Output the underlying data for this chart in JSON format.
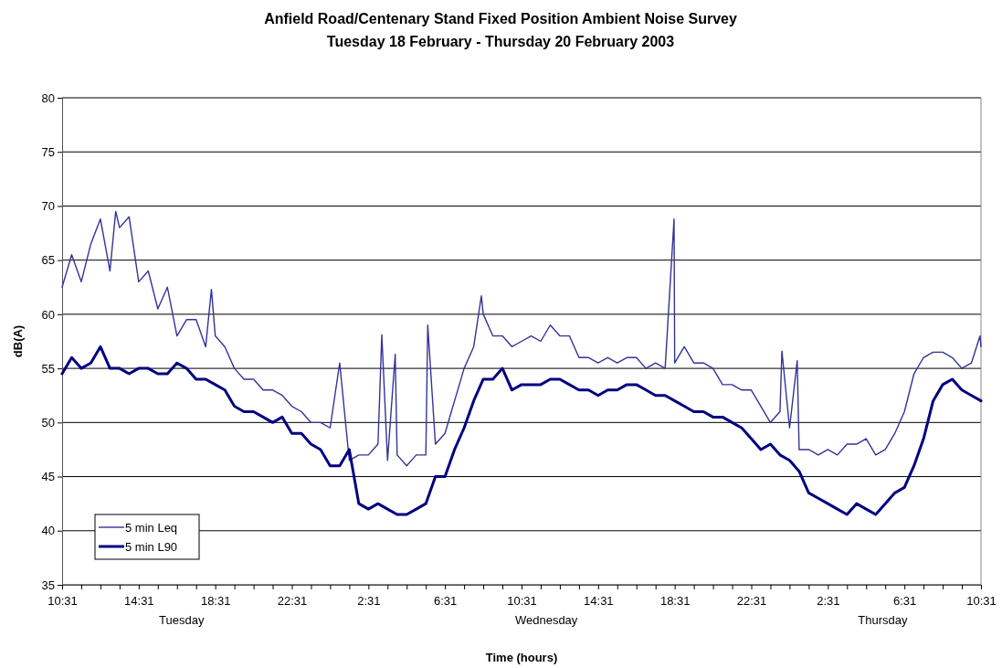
{
  "chart_data": {
    "type": "line",
    "title": "Anfield Road/Centenary Stand Fixed Position Ambient Noise Survey",
    "subtitle": "Tuesday 18 February - Thursday 20 February 2003",
    "xlabel": "Time (hours)",
    "ylabel": "dB(A)",
    "annotations": [
      "Tuesday",
      "Wednesday",
      "Thursday"
    ],
    "xlim": [
      "2003-02-18T10:31",
      "2003-02-20T10:31"
    ],
    "ylim": [
      35,
      80
    ],
    "yticks": [
      35,
      40,
      45,
      50,
      55,
      60,
      65,
      70,
      75,
      80
    ],
    "xticks": [
      {
        "value": "2003-02-18T10:31",
        "label": "10:31"
      },
      {
        "value": "2003-02-18T11:31",
        "label": null
      },
      {
        "value": "2003-02-18T12:31",
        "label": null
      },
      {
        "value": "2003-02-18T13:31",
        "label": null
      },
      {
        "value": "2003-02-18T14:31",
        "label": "14:31"
      },
      {
        "value": "2003-02-18T15:31",
        "label": null
      },
      {
        "value": "2003-02-18T16:31",
        "label": null
      },
      {
        "value": "2003-02-18T17:31",
        "label": null
      },
      {
        "value": "2003-02-18T18:31",
        "label": "18:31"
      },
      {
        "value": "2003-02-18T19:31",
        "label": null
      },
      {
        "value": "2003-02-18T20:31",
        "label": null
      },
      {
        "value": "2003-02-18T21:31",
        "label": null
      },
      {
        "value": "2003-02-18T22:31",
        "label": "22:31"
      },
      {
        "value": "2003-02-18T23:31",
        "label": null
      },
      {
        "value": "2003-02-19T00:31",
        "label": null
      },
      {
        "value": "2003-02-19T01:31",
        "label": null
      },
      {
        "value": "2003-02-19T02:31",
        "label": "2:31"
      },
      {
        "value": "2003-02-19T03:31",
        "label": null
      },
      {
        "value": "2003-02-19T04:31",
        "label": null
      },
      {
        "value": "2003-02-19T05:31",
        "label": null
      },
      {
        "value": "2003-02-19T06:31",
        "label": "6:31"
      },
      {
        "value": "2003-02-19T07:31",
        "label": null
      },
      {
        "value": "2003-02-19T08:31",
        "label": null
      },
      {
        "value": "2003-02-19T09:31",
        "label": null
      },
      {
        "value": "2003-02-19T10:31",
        "label": "10:31"
      },
      {
        "value": "2003-02-19T11:31",
        "label": null
      },
      {
        "value": "2003-02-19T12:31",
        "label": null
      },
      {
        "value": "2003-02-19T13:31",
        "label": null
      },
      {
        "value": "2003-02-19T14:31",
        "label": "14:31"
      },
      {
        "value": "2003-02-19T15:31",
        "label": null
      },
      {
        "value": "2003-02-19T16:31",
        "label": null
      },
      {
        "value": "2003-02-19T17:31",
        "label": null
      },
      {
        "value": "2003-02-19T18:31",
        "label": "18:31"
      },
      {
        "value": "2003-02-19T19:31",
        "label": null
      },
      {
        "value": "2003-02-19T20:31",
        "label": null
      },
      {
        "value": "2003-02-19T21:31",
        "label": null
      },
      {
        "value": "2003-02-19T22:31",
        "label": "22:31"
      },
      {
        "value": "2003-02-19T23:31",
        "label": null
      },
      {
        "value": "2003-02-20T00:31",
        "label": null
      },
      {
        "value": "2003-02-20T01:31",
        "label": null
      },
      {
        "value": "2003-02-20T02:31",
        "label": "2:31"
      },
      {
        "value": "2003-02-20T03:31",
        "label": null
      },
      {
        "value": "2003-02-20T04:31",
        "label": null
      },
      {
        "value": "2003-02-20T05:31",
        "label": null
      },
      {
        "value": "2003-02-20T06:31",
        "label": "6:31"
      },
      {
        "value": "2003-02-20T07:31",
        "label": null
      },
      {
        "value": "2003-02-20T08:31",
        "label": null
      },
      {
        "value": "2003-02-20T09:31",
        "label": null
      },
      {
        "value": "2003-02-20T10:31",
        "label": "10:31"
      }
    ],
    "grid": "y",
    "legend": "bottom left",
    "marker": "none",
    "line_style": "solid",
    "x": [
      "2003-02-18T10:31",
      "2003-02-18T11:01",
      "2003-02-18T11:31",
      "2003-02-18T12:01",
      "2003-02-18T12:31",
      "2003-02-18T13:01",
      "2003-02-18T13:31",
      "2003-02-18T14:01",
      "2003-02-18T14:31",
      "2003-02-18T15:01",
      "2003-02-18T15:31",
      "2003-02-18T16:01",
      "2003-02-18T16:31",
      "2003-02-18T17:01",
      "2003-02-18T17:31",
      "2003-02-18T18:01",
      "2003-02-18T18:31",
      "2003-02-18T19:01",
      "2003-02-18T19:31",
      "2003-02-18T20:01",
      "2003-02-18T20:31",
      "2003-02-18T21:01",
      "2003-02-18T21:31",
      "2003-02-18T22:01",
      "2003-02-18T22:31",
      "2003-02-18T23:01",
      "2003-02-18T23:31",
      "2003-02-19T00:01",
      "2003-02-19T00:31",
      "2003-02-19T01:01",
      "2003-02-19T01:31",
      "2003-02-19T02:01",
      "2003-02-19T02:31",
      "2003-02-19T03:01",
      "2003-02-19T03:31",
      "2003-02-19T04:01",
      "2003-02-19T04:31",
      "2003-02-19T05:01",
      "2003-02-19T05:31",
      "2003-02-19T06:01",
      "2003-02-19T06:31",
      "2003-02-19T07:01",
      "2003-02-19T07:31",
      "2003-02-19T08:01",
      "2003-02-19T08:31",
      "2003-02-19T09:01",
      "2003-02-19T09:31",
      "2003-02-19T10:01",
      "2003-02-19T10:31",
      "2003-02-19T11:01",
      "2003-02-19T11:31",
      "2003-02-19T12:01",
      "2003-02-19T12:31",
      "2003-02-19T13:01",
      "2003-02-19T13:31",
      "2003-02-19T14:01",
      "2003-02-19T14:31",
      "2003-02-19T15:01",
      "2003-02-19T15:31",
      "2003-02-19T16:01",
      "2003-02-19T16:31",
      "2003-02-19T17:01",
      "2003-02-19T17:31",
      "2003-02-19T18:01",
      "2003-02-19T18:31",
      "2003-02-19T19:01",
      "2003-02-19T19:31",
      "2003-02-19T20:01",
      "2003-02-19T20:31",
      "2003-02-19T21:01",
      "2003-02-19T21:31",
      "2003-02-19T22:01",
      "2003-02-19T22:31",
      "2003-02-19T23:01",
      "2003-02-19T23:31",
      "2003-02-20T00:01",
      "2003-02-20T00:31",
      "2003-02-20T01:01",
      "2003-02-20T01:31",
      "2003-02-20T02:01",
      "2003-02-20T02:31",
      "2003-02-20T03:01",
      "2003-02-20T03:31",
      "2003-02-20T04:01",
      "2003-02-20T04:31",
      "2003-02-20T05:01",
      "2003-02-20T05:31",
      "2003-02-20T06:01",
      "2003-02-20T06:31",
      "2003-02-20T07:01",
      "2003-02-20T07:31",
      "2003-02-20T08:01",
      "2003-02-20T08:31",
      "2003-02-20T09:01",
      "2003-02-20T09:31",
      "2003-02-20T10:01",
      "2003-02-20T10:31"
    ],
    "series": [
      {
        "name": "5 min Leq",
        "color": "#333399",
        "x": [
          "2003-02-18T10:31",
          "2003-02-18T11:01",
          "2003-02-18T11:31",
          "2003-02-18T12:01",
          "2003-02-18T12:31",
          "2003-02-18T13:01",
          "2003-02-18T13:19",
          "2003-02-18T13:31",
          "2003-02-18T14:01",
          "2003-02-18T14:31",
          "2003-02-18T15:01",
          "2003-02-18T15:31",
          "2003-02-18T16:01",
          "2003-02-18T16:31",
          "2003-02-18T17:01",
          "2003-02-18T17:31",
          "2003-02-18T18:01",
          "2003-02-18T18:19",
          "2003-02-18T18:31",
          "2003-02-18T19:01",
          "2003-02-18T19:31",
          "2003-02-18T20:01",
          "2003-02-18T20:31",
          "2003-02-18T21:01",
          "2003-02-18T21:31",
          "2003-02-18T22:01",
          "2003-02-18T22:31",
          "2003-02-18T23:01",
          "2003-02-18T23:31",
          "2003-02-19T00:01",
          "2003-02-19T00:31",
          "2003-02-19T01:01",
          "2003-02-19T01:31",
          "2003-02-19T02:01",
          "2003-02-19T02:31",
          "2003-02-19T03:01",
          "2003-02-19T03:13",
          "2003-02-19T03:31",
          "2003-02-19T03:55",
          "2003-02-19T04:01",
          "2003-02-19T04:31",
          "2003-02-19T05:01",
          "2003-02-19T05:31",
          "2003-02-19T05:37",
          "2003-02-19T06:01",
          "2003-02-19T06:31",
          "2003-02-19T07:01",
          "2003-02-19T07:31",
          "2003-02-19T08:01",
          "2003-02-19T08:25",
          "2003-02-19T08:31",
          "2003-02-19T09:01",
          "2003-02-19T09:31",
          "2003-02-19T10:01",
          "2003-02-19T10:31",
          "2003-02-19T11:01",
          "2003-02-19T11:31",
          "2003-02-19T12:01",
          "2003-02-19T12:31",
          "2003-02-19T13:01",
          "2003-02-19T13:31",
          "2003-02-19T14:01",
          "2003-02-19T14:31",
          "2003-02-19T15:01",
          "2003-02-19T15:31",
          "2003-02-19T16:01",
          "2003-02-19T16:31",
          "2003-02-19T17:01",
          "2003-02-19T17:31",
          "2003-02-19T18:01",
          "2003-02-19T18:29",
          "2003-02-19T18:31",
          "2003-02-19T19:01",
          "2003-02-19T19:31",
          "2003-02-19T20:01",
          "2003-02-19T20:31",
          "2003-02-19T21:01",
          "2003-02-19T21:31",
          "2003-02-19T22:01",
          "2003-02-19T22:31",
          "2003-02-19T23:01",
          "2003-02-19T23:31",
          "2003-02-20T00:01",
          "2003-02-20T00:07",
          "2003-02-20T00:31",
          "2003-02-20T00:55",
          "2003-02-20T01:01",
          "2003-02-20T01:31",
          "2003-02-20T02:01",
          "2003-02-20T02:31",
          "2003-02-20T03:01",
          "2003-02-20T03:31",
          "2003-02-20T04:01",
          "2003-02-20T04:31",
          "2003-02-20T05:01",
          "2003-02-20T05:31",
          "2003-02-20T06:01",
          "2003-02-20T06:31",
          "2003-02-20T07:01",
          "2003-02-20T07:31",
          "2003-02-20T08:01",
          "2003-02-20T08:31",
          "2003-02-20T09:01",
          "2003-02-20T09:31",
          "2003-02-20T10:01",
          "2003-02-20T10:28",
          "2003-02-20T10:31"
        ],
        "values": [
          62.5,
          65.5,
          63,
          66.5,
          68.8,
          64,
          69.5,
          68,
          69,
          63,
          64,
          60.5,
          62.5,
          58,
          59.5,
          59.5,
          57,
          62.3,
          58,
          57,
          55,
          54,
          54,
          53,
          53,
          52.5,
          51.5,
          51,
          50,
          50,
          49.5,
          55.5,
          46.5,
          47,
          47,
          48,
          58.1,
          46.5,
          56.3,
          47,
          46,
          47,
          47,
          59,
          48,
          49,
          52,
          55,
          57,
          61.7,
          60,
          58,
          58,
          57,
          57.5,
          58,
          57.5,
          59,
          58,
          58,
          56,
          56,
          55.5,
          56,
          55.5,
          56,
          56,
          55,
          55.5,
          55,
          68.8,
          55.5,
          57,
          55.5,
          55.5,
          55,
          53.5,
          53.5,
          53,
          53,
          51.5,
          50,
          51,
          56.6,
          49.5,
          55.7,
          47.5,
          47.5,
          47,
          47.5,
          47,
          48,
          48,
          48.5,
          47,
          47.5,
          49,
          51,
          54.5,
          56,
          56.5,
          56.5,
          56,
          55,
          55.5,
          58,
          57
        ]
      },
      {
        "name": "5 min L90",
        "color": "#000080",
        "values": [
          54.5,
          56,
          55,
          55.5,
          57,
          55,
          55,
          54.5,
          55,
          55,
          54.5,
          54.5,
          55.5,
          55,
          54,
          54,
          53.5,
          53,
          51.5,
          51,
          51,
          50.5,
          50,
          50.5,
          49,
          49,
          48,
          47.5,
          46,
          46,
          47.5,
          42.5,
          42,
          42.5,
          42,
          41.5,
          41.5,
          42,
          42.5,
          45,
          45,
          47.5,
          49.5,
          52,
          54,
          54,
          55,
          53,
          53.5,
          53.5,
          53.5,
          54,
          54,
          53.5,
          53,
          53,
          52.5,
          53,
          53,
          53.5,
          53.5,
          53,
          52.5,
          52.5,
          52,
          51.5,
          51,
          51,
          50.5,
          50.5,
          50,
          49.5,
          48.5,
          47.5,
          48,
          47,
          46.5,
          45.5,
          43.5,
          43,
          42.5,
          42,
          41.5,
          42.5,
          42,
          41.5,
          42.5,
          43.5,
          44,
          46,
          48.5,
          52,
          53.5,
          54,
          53,
          52.5,
          52
        ]
      }
    ]
  }
}
